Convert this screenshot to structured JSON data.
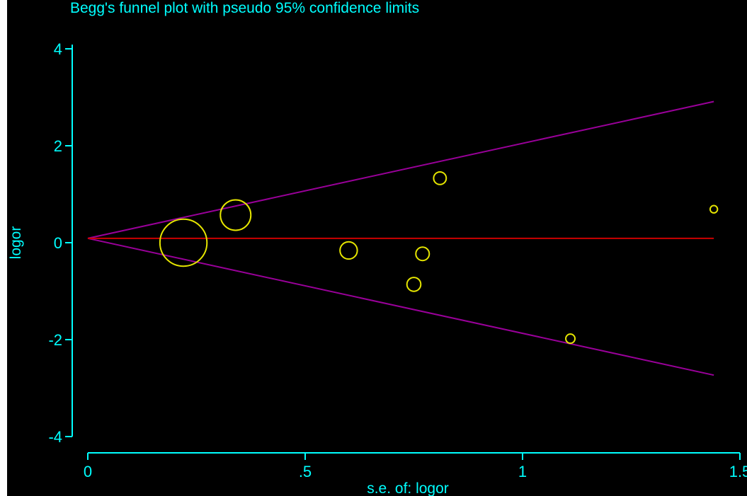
{
  "chart_data": {
    "type": "scatter",
    "title": "Begg's funnel plot with pseudo 95% confidence limits",
    "xlabel": "s.e. of: logor",
    "ylabel": "logor",
    "xlim": [
      0,
      1.5
    ],
    "ylim": [
      -4,
      4
    ],
    "x_ticks": [
      "0",
      ".5",
      "1",
      "1.5"
    ],
    "y_ticks": [
      "4",
      "2",
      "0",
      "-2",
      "-4"
    ],
    "x_tick_values": [
      0,
      0.5,
      1,
      1.5
    ],
    "y_tick_values": [
      4,
      2,
      0,
      -2,
      -4
    ],
    "pooled_estimate": 0.09,
    "pooled_line_x_range": [
      0,
      1.44
    ],
    "confidence_limit_multiplier": 1.96,
    "grid": false,
    "legend": "none",
    "series": [
      {
        "values": [
          {
            "x": 0.22,
            "y": 0.0,
            "weight": 20.7
          },
          {
            "x": 0.34,
            "y": 0.57,
            "weight": 8.7
          },
          {
            "x": 0.6,
            "y": -0.16,
            "weight": 2.8
          },
          {
            "x": 0.77,
            "y": -0.23,
            "weight": 1.7
          },
          {
            "x": 0.75,
            "y": -0.86,
            "weight": 1.8
          },
          {
            "x": 0.81,
            "y": 1.33,
            "weight": 1.5
          },
          {
            "x": 1.11,
            "y": -1.98,
            "weight": 0.8
          },
          {
            "x": 1.44,
            "y": 0.69,
            "weight": 0.5
          }
        ]
      }
    ],
    "colors": {
      "background": "#000000",
      "axes": "#00ffff",
      "text": "#00ffff",
      "points": "#e6e600",
      "pooled_line": "#cc0000",
      "confidence_limits": "#990099"
    }
  }
}
